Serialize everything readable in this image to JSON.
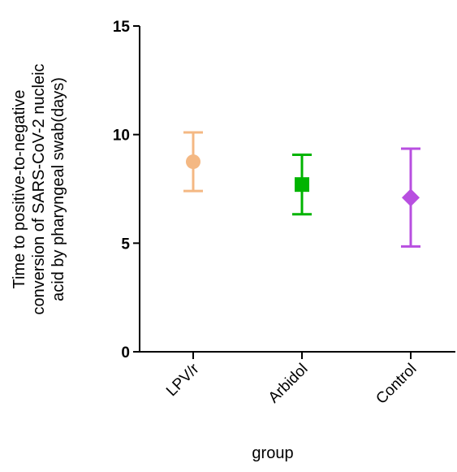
{
  "chart_data": {
    "type": "errorbar",
    "ylabel": [
      "Time to positive-to-negative",
      "conversion of SARS-CoV-2 nucleic",
      "acid by pharyngeal swab(days)"
    ],
    "xlabel": "group",
    "categories": [
      "LPV/r",
      "Arbidol",
      "Control"
    ],
    "values": [
      8.75,
      7.7,
      7.1
    ],
    "errors": [
      1.35,
      1.37,
      2.25
    ],
    "colors": [
      "#f4b883",
      "#00b400",
      "#b84fe0"
    ],
    "markers": [
      "circle",
      "square",
      "diamond"
    ],
    "ylim": [
      0,
      15
    ],
    "yticks": [
      0,
      5,
      10,
      15
    ]
  }
}
